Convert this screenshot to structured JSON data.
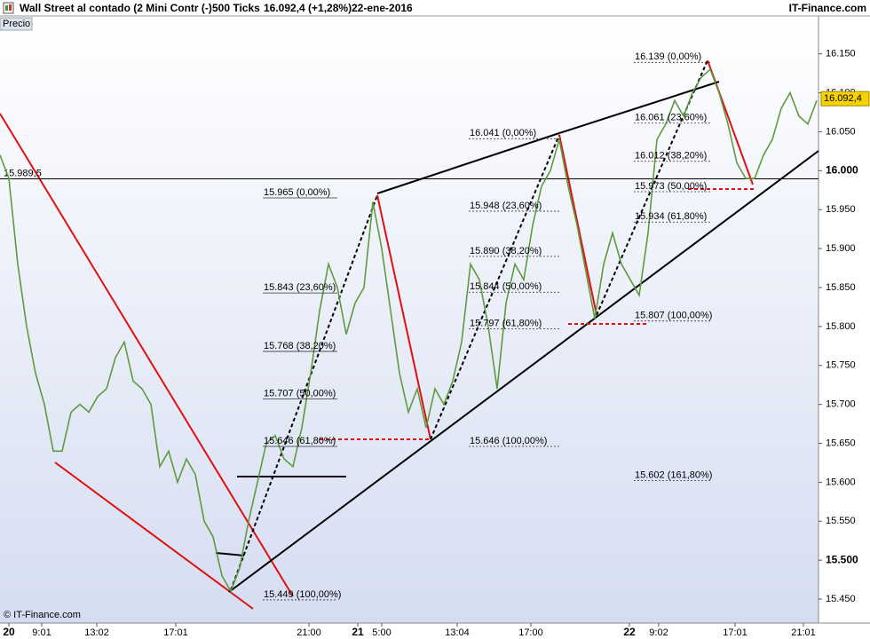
{
  "chart_data": {
    "type": "line",
    "instrument": "Wall Street al contado (2 Mini Contr (-)",
    "interval": "500 Ticks",
    "last": "16.092,4 (+1,28%)",
    "date": "22-ene-2016",
    "source": "IT-Finance.com",
    "copyright": "© IT-Finance.com",
    "panel_label": "Precio",
    "series": [
      {
        "name": "Precio",
        "color": "#5e9b3e",
        "values": [
          16.02,
          15.99,
          15.88,
          15.8,
          15.74,
          15.7,
          15.64,
          15.64,
          15.69,
          15.7,
          15.69,
          15.71,
          15.72,
          15.76,
          15.78,
          15.73,
          15.72,
          15.7,
          15.62,
          15.64,
          15.6,
          15.63,
          15.61,
          15.55,
          15.53,
          15.48,
          15.46,
          15.49,
          15.55,
          15.6,
          15.65,
          15.66,
          15.63,
          15.62,
          15.67,
          15.74,
          15.82,
          15.88,
          15.85,
          15.79,
          15.83,
          15.85,
          15.96,
          15.9,
          15.82,
          15.74,
          15.69,
          15.72,
          15.67,
          15.72,
          15.7,
          15.73,
          15.78,
          15.88,
          15.86,
          15.8,
          15.72,
          15.83,
          15.88,
          15.86,
          15.93,
          15.98,
          16.0,
          16.04,
          15.98,
          15.93,
          15.87,
          15.81,
          15.88,
          15.92,
          15.88,
          15.86,
          15.84,
          15.92,
          16.04,
          16.06,
          16.09,
          16.07,
          16.1,
          16.12,
          16.13,
          16.1,
          16.06,
          16.01,
          15.99,
          15.99,
          16.02,
          16.04,
          16.08,
          16.1,
          16.07,
          16.06,
          16.09
        ]
      }
    ],
    "xlim": [
      0,
      92.2
    ],
    "xticks": [
      {
        "value": 1,
        "label": "20"
      },
      {
        "value": 4.7,
        "label": "9:01"
      },
      {
        "value": 10.9,
        "label": "13:02"
      },
      {
        "value": 19.8,
        "label": "17:01"
      },
      {
        "value": 34.8,
        "label": "21:00"
      },
      {
        "value": 40.3,
        "label": "21"
      },
      {
        "value": 43,
        "label": "5:00"
      },
      {
        "value": 51.5,
        "label": "13:04"
      },
      {
        "value": 59.8,
        "label": "17:00"
      },
      {
        "value": 70.9,
        "label": "22"
      },
      {
        "value": 74.2,
        "label": "9:02"
      },
      {
        "value": 82.8,
        "label": "17:01"
      },
      {
        "value": 90.5,
        "label": "21:01"
      }
    ],
    "ylim": [
      15.4193,
      16.1986
    ],
    "yticks": [
      {
        "value": 15.45,
        "label": "15.450"
      },
      {
        "value": 15.5,
        "label": "15.500"
      },
      {
        "value": 15.55,
        "label": "15.550"
      },
      {
        "value": 15.6,
        "label": "15.600"
      },
      {
        "value": 15.65,
        "label": "15.650"
      },
      {
        "value": 15.7,
        "label": "15.700"
      },
      {
        "value": 15.75,
        "label": "15.750"
      },
      {
        "value": 15.8,
        "label": "15.800"
      },
      {
        "value": 15.85,
        "label": "15.850"
      },
      {
        "value": 15.9,
        "label": "15.900"
      },
      {
        "value": 15.95,
        "label": "15.950"
      },
      {
        "value": 16.0,
        "label": "16.000"
      },
      {
        "value": 16.05,
        "label": "16.050"
      },
      {
        "value": 16.1,
        "label": "16.100"
      },
      {
        "value": 16.15,
        "label": "16.150"
      }
    ],
    "last_price": {
      "value": 16.0924,
      "label": "16.092,4"
    },
    "hline": {
      "value": 15.9895,
      "label": "15.989,5"
    },
    "fib_sets": [
      {
        "levels": [
          {
            "value": 15.965,
            "label": "15.965 (0,00%)"
          },
          {
            "value": 15.843,
            "label": "15.843 (23,60%)"
          },
          {
            "value": 15.768,
            "label": "15.768 (38,20%)"
          },
          {
            "value": 15.707,
            "label": "15.707 (50,00%)"
          },
          {
            "value": 15.646,
            "label": "15.646 (61,80%)"
          },
          {
            "value": 15.449,
            "label": "15.449 (100,00%)"
          }
        ]
      },
      {
        "levels": [
          {
            "value": 16.041,
            "label": "16.041 (0,00%)"
          },
          {
            "value": 15.948,
            "label": "15.948 (23,60%)"
          },
          {
            "value": 15.89,
            "label": "15.890 (38,20%)"
          },
          {
            "value": 15.844,
            "label": "15.844 (50,00%)"
          },
          {
            "value": 15.797,
            "label": "15.797 (61,80%)"
          },
          {
            "value": 15.646,
            "label": "15.646 (100,00%)"
          }
        ]
      },
      {
        "levels": [
          {
            "value": 16.139,
            "label": "16.139 (0,00%)"
          },
          {
            "value": 16.061,
            "label": "16.061 (23,60%)"
          },
          {
            "value": 16.012,
            "label": "16.012 (38,20%)"
          },
          {
            "value": 15.973,
            "label": "15.973 (50,00%)"
          },
          {
            "value": 15.934,
            "label": "15.934 (61,80%)"
          },
          {
            "value": 15.807,
            "label": "15.807 (100,00%)"
          },
          {
            "value": 15.602,
            "label": "15.602 (161,80%)"
          }
        ]
      }
    ]
  }
}
